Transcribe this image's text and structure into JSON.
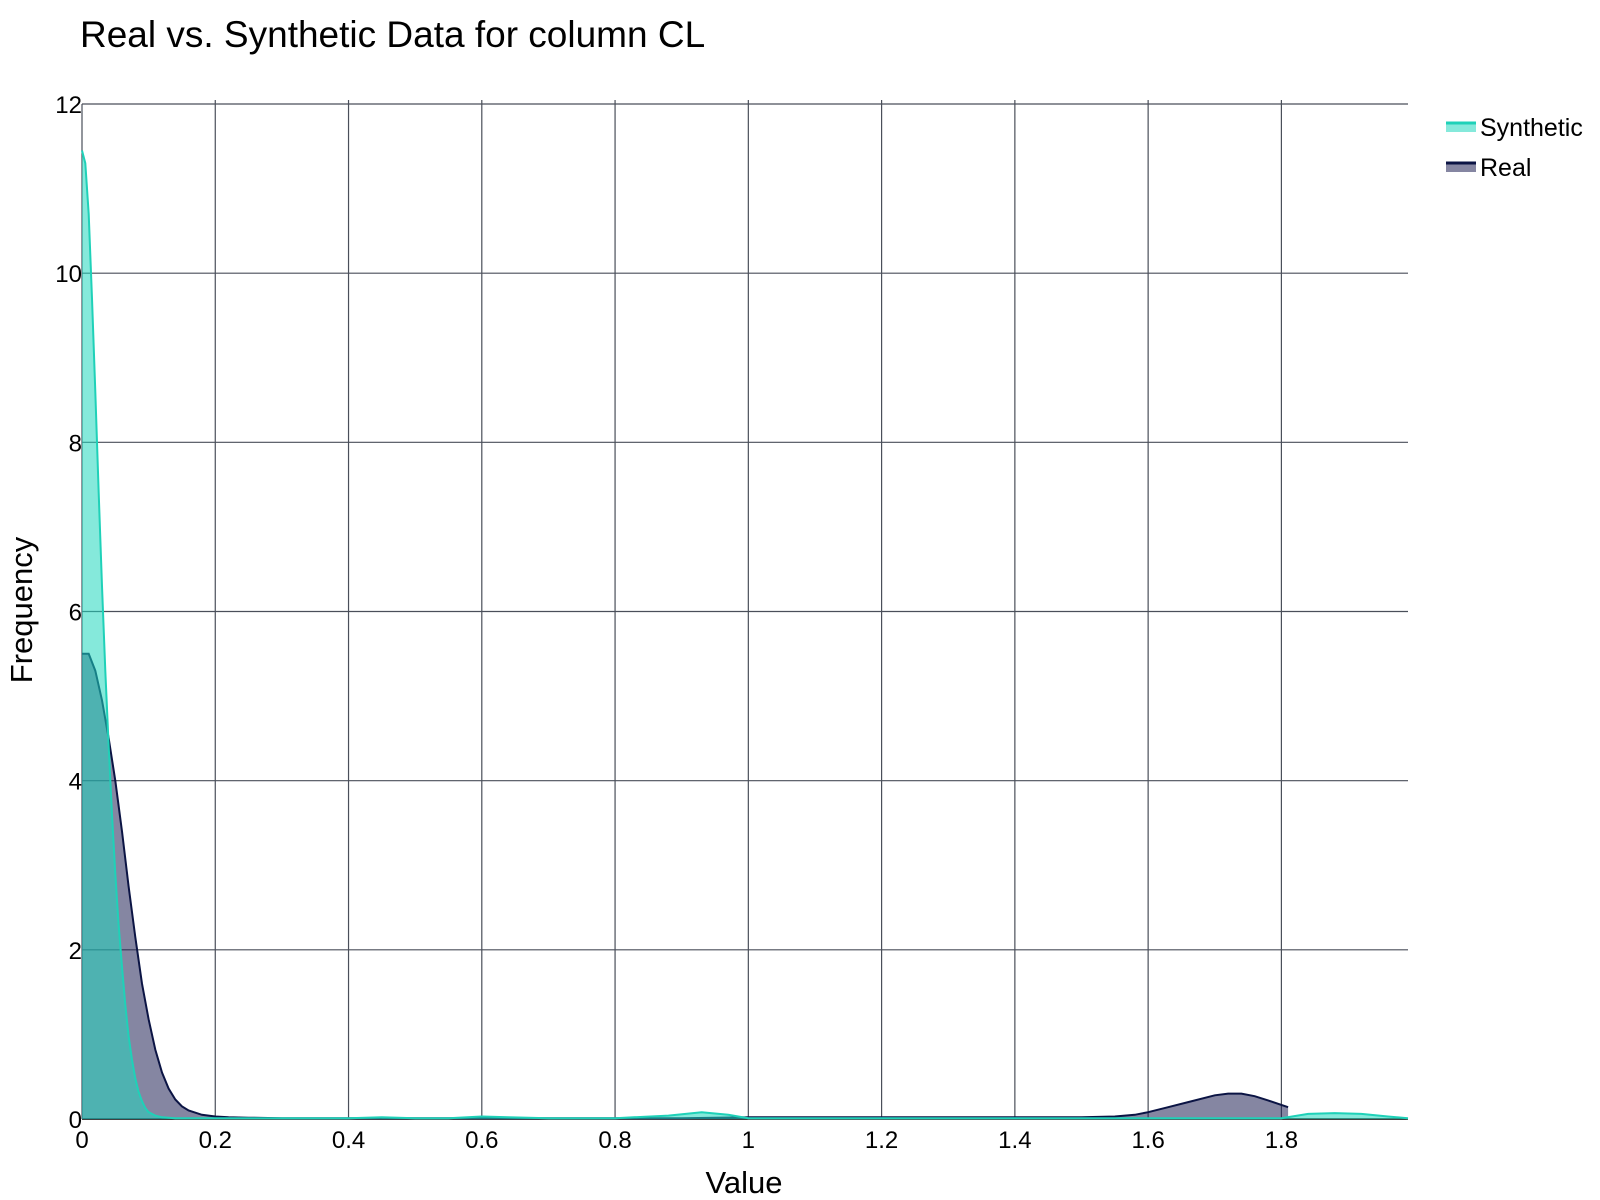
{
  "chart_data": {
    "type": "area",
    "title": "Real vs. Synthetic Data for column CL",
    "xlabel": "Value",
    "ylabel": "Frequency",
    "xlim": [
      0,
      1.99
    ],
    "ylim": [
      0,
      12
    ],
    "x_ticks": [
      0,
      0.2,
      0.4,
      0.6,
      0.8,
      1,
      1.2,
      1.4,
      1.6,
      1.8
    ],
    "x_tick_labels": [
      "0",
      "0.2",
      "0.4",
      "0.6",
      "0.8",
      "1",
      "1.2",
      "1.4",
      "1.6",
      "1.8"
    ],
    "y_ticks": [
      0,
      2,
      4,
      6,
      8,
      10,
      12
    ],
    "y_tick_labels": [
      "0",
      "2",
      "4",
      "6",
      "8",
      "10",
      "12"
    ],
    "grid": true,
    "legend_position": "top-right",
    "series": [
      {
        "name": "Real",
        "color": "#0b1444",
        "fill": "rgba(33,35,85,0.55)",
        "x": [
          0,
          0.01,
          0.02,
          0.03,
          0.04,
          0.05,
          0.06,
          0.07,
          0.08,
          0.09,
          0.1,
          0.11,
          0.12,
          0.13,
          0.14,
          0.15,
          0.16,
          0.18,
          0.2,
          0.22,
          0.25,
          0.3,
          0.4,
          0.5,
          0.6,
          0.7,
          0.8,
          0.9,
          1.0,
          1.2,
          1.4,
          1.5,
          1.55,
          1.58,
          1.6,
          1.63,
          1.66,
          1.7,
          1.72,
          1.74,
          1.76,
          1.78,
          1.81
        ],
        "y": [
          5.5,
          5.5,
          5.3,
          4.95,
          4.5,
          4.0,
          3.4,
          2.75,
          2.15,
          1.6,
          1.18,
          0.82,
          0.55,
          0.36,
          0.23,
          0.15,
          0.1,
          0.05,
          0.03,
          0.02,
          0.015,
          0.01,
          0.01,
          0.01,
          0.01,
          0.01,
          0.01,
          0.01,
          0.02,
          0.02,
          0.02,
          0.02,
          0.03,
          0.05,
          0.08,
          0.14,
          0.2,
          0.28,
          0.3,
          0.3,
          0.27,
          0.22,
          0.14
        ]
      },
      {
        "name": "Synthetic",
        "color": "#1fd1b8",
        "fill": "rgba(32,215,190,0.55)",
        "x": [
          0,
          0.005,
          0.01,
          0.015,
          0.02,
          0.025,
          0.03,
          0.035,
          0.04,
          0.045,
          0.05,
          0.055,
          0.06,
          0.065,
          0.07,
          0.075,
          0.08,
          0.085,
          0.09,
          0.095,
          0.1,
          0.11,
          0.12,
          0.14,
          0.16,
          0.2,
          0.3,
          0.4,
          0.45,
          0.5,
          0.55,
          0.6,
          0.64,
          0.7,
          0.8,
          0.88,
          0.93,
          0.97,
          1.0,
          1.2,
          1.4,
          1.6,
          1.8,
          1.84,
          1.88,
          1.92,
          1.96,
          1.99
        ],
        "y": [
          11.45,
          11.3,
          10.7,
          9.7,
          8.6,
          7.4,
          6.3,
          5.3,
          4.4,
          3.6,
          2.9,
          2.3,
          1.8,
          1.35,
          0.98,
          0.7,
          0.48,
          0.32,
          0.21,
          0.13,
          0.08,
          0.04,
          0.02,
          0.01,
          0.01,
          0.01,
          0.01,
          0.01,
          0.02,
          0.01,
          0.01,
          0.03,
          0.02,
          0.01,
          0.01,
          0.04,
          0.08,
          0.05,
          0.01,
          0.01,
          0.01,
          0.01,
          0.01,
          0.06,
          0.07,
          0.06,
          0.03,
          0.01
        ]
      }
    ],
    "legend_order": [
      "Synthetic",
      "Real"
    ]
  },
  "colors": {
    "grid": "#4a4f5a",
    "axis": "#000000"
  }
}
